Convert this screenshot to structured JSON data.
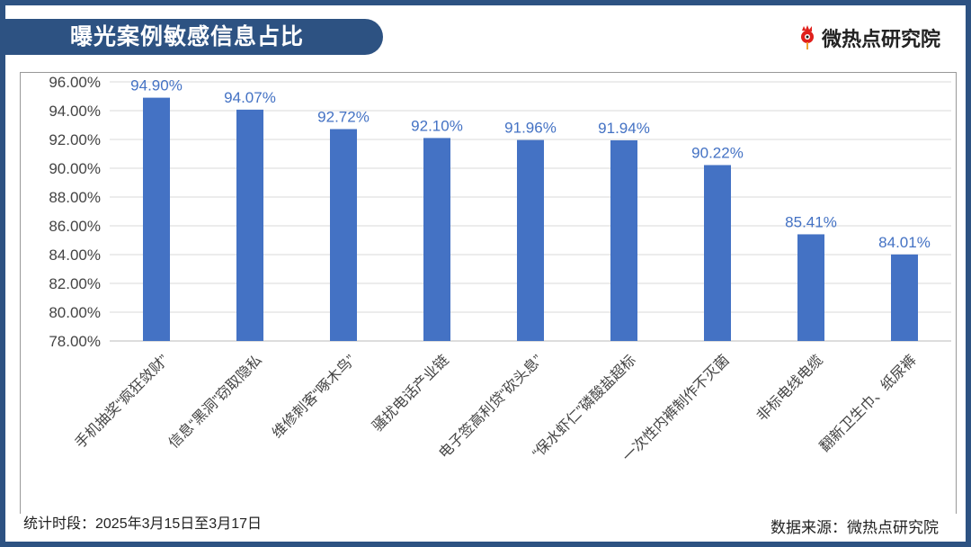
{
  "header": {
    "title": "曝光案例敏感信息占比",
    "logo_text": "微热点研究院"
  },
  "footer": {
    "period": "统计时段：2025年3月15日至3月17日",
    "source": "数据来源：微热点研究院"
  },
  "colors": {
    "bar": "#4472c4",
    "label": "#4472c4",
    "frame": "#2d5282"
  },
  "chart_data": {
    "type": "bar",
    "categories": [
      "手机抽奖“疯狂敛财”",
      "信息“黑洞”窃取隐私",
      "维修刺客“啄木鸟”",
      "骚扰电话产业链",
      "电子签高利贷“砍头息”",
      "“保水虾仁”磷酸盐超标",
      "一次性内裤制作不灭菌",
      "非标电线电缆",
      "翻新卫生巾、纸尿裤"
    ],
    "values": [
      94.9,
      94.07,
      92.72,
      92.1,
      91.96,
      91.94,
      90.22,
      85.41,
      84.01
    ],
    "data_labels": [
      "94.90%",
      "94.07%",
      "92.72%",
      "92.10%",
      "91.96%",
      "91.94%",
      "90.22%",
      "85.41%",
      "84.01%"
    ],
    "ylim": [
      78,
      96
    ],
    "yticks": [
      "78.00%",
      "80.00%",
      "82.00%",
      "84.00%",
      "86.00%",
      "88.00%",
      "90.00%",
      "92.00%",
      "94.00%",
      "96.00%"
    ],
    "grid": true,
    "legend": "none"
  }
}
